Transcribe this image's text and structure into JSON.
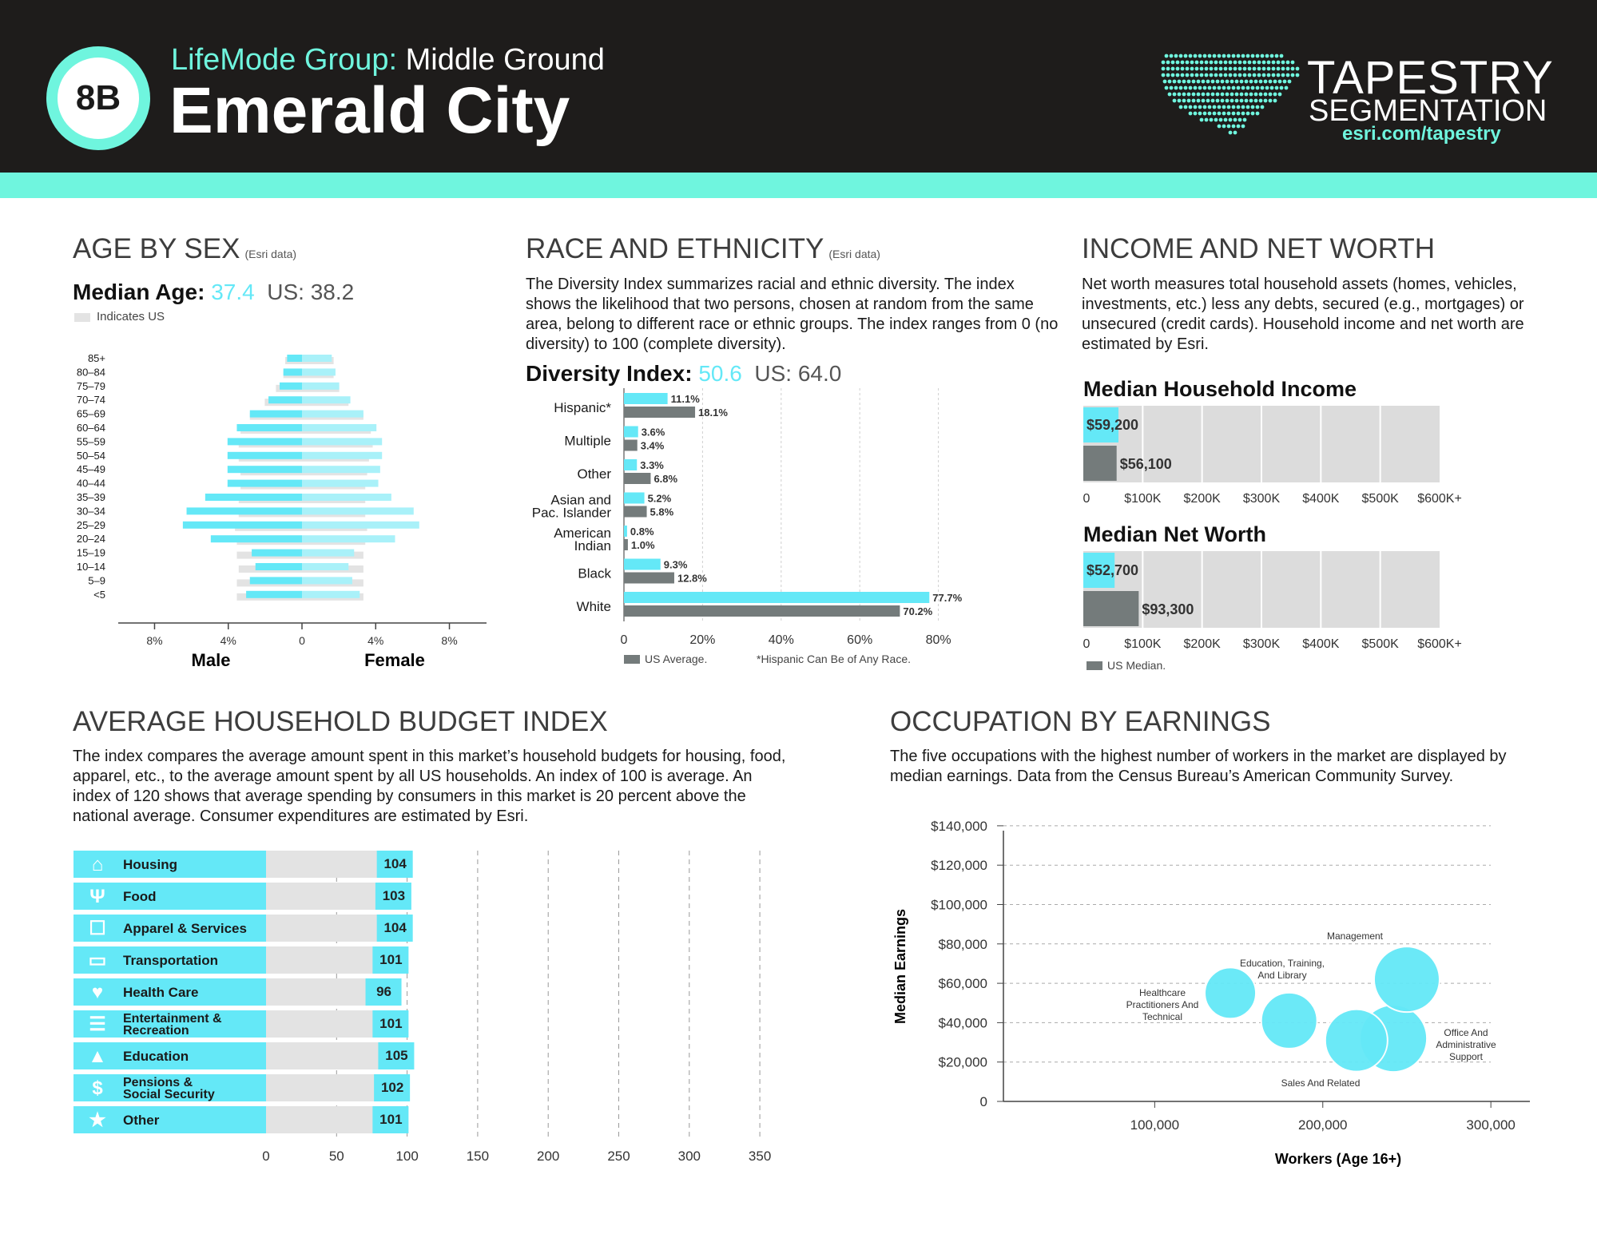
{
  "header": {
    "badge": "8B",
    "lifemode_prefix": "LifeMode Group:",
    "lifemode_name": "Middle Ground",
    "segment_name": "Emerald City",
    "brand_line1": "TAPESTRY",
    "brand_line2": "SEGMENTATION",
    "brand_url": "esri.com/tapestry"
  },
  "age_by_sex": {
    "title": "AGE BY SEX",
    "source": "(Esri data)",
    "median_label": "Median Age:",
    "median_value": "37.4",
    "us_value": "US: 38.2",
    "legend": "Indicates US",
    "male_label": "Male",
    "female_label": "Female"
  },
  "race": {
    "title": "RACE AND ETHNICITY",
    "source": "(Esri data)",
    "description": "The Diversity Index summarizes racial and ethnic diversity. The index shows the likelihood that two persons, chosen at random from the same area, belong to different race or ethnic groups. The index ranges from 0 (no diversity) to 100 (complete diversity).",
    "diversity_label": "Diversity Index:",
    "diversity_value": "50.6",
    "us_value": "US: 64.0",
    "legend": "US Average.",
    "note": "*Hispanic Can Be of Any Race."
  },
  "income": {
    "title": "INCOME AND NET WORTH",
    "description": "Net worth measures total household assets (homes, vehicles, investments, etc.) less any debts, secured (e.g., mortgages) or unsecured (credit cards). Household income and net worth are estimated by Esri.",
    "legend": "US Median."
  },
  "budget": {
    "title": "AVERAGE HOUSEHOLD BUDGET INDEX",
    "description": "The index compares the average amount spent in this market’s household budgets for housing, food, apparel, etc., to the average amount spent by all US households. An index of 100 is average. An index of 120 shows that average spending by consumers in this market is 20 percent above the national average. Consumer expenditures are estimated by Esri."
  },
  "occupation": {
    "title": "OCCUPATION BY EARNINGS",
    "description": "The five occupations with the highest number of workers in the market are displayed by median earnings. Data from the Census Bureau’s American Community Survey."
  },
  "chart_data": [
    {
      "type": "bar",
      "subtype": "population-pyramid",
      "categories": [
        "85+",
        "80–84",
        "75–79",
        "70–74",
        "65–69",
        "60–64",
        "55–59",
        "50–54",
        "45–49",
        "40–44",
        "35–39",
        "30–34",
        "25–29",
        "20–24",
        "15–19",
        "10–14",
        "5–9",
        "<5"
      ],
      "series": [
        {
          "name": "Male",
          "values": [
            0.8,
            1.0,
            1.2,
            1.8,
            2.8,
            3.5,
            4.0,
            4.0,
            4.0,
            4.0,
            5.2,
            6.2,
            6.4,
            4.9,
            2.7,
            2.5,
            2.8,
            3.0
          ]
        },
        {
          "name": "Female",
          "values": [
            1.6,
            1.8,
            2.0,
            2.6,
            3.3,
            4.0,
            4.3,
            4.3,
            4.2,
            4.1,
            4.8,
            6.0,
            6.3,
            5.0,
            2.8,
            2.5,
            2.7,
            3.1
          ]
        },
        {
          "name": "US Male",
          "values": [
            0.9,
            1.0,
            1.4,
            2.0,
            2.8,
            3.3,
            3.4,
            3.4,
            3.3,
            3.3,
            3.4,
            3.4,
            3.6,
            3.5,
            3.5,
            3.4,
            3.5,
            3.5
          ]
        },
        {
          "name": "US Female",
          "values": [
            1.7,
            1.7,
            2.0,
            2.5,
            3.3,
            3.7,
            3.8,
            3.6,
            3.5,
            3.4,
            3.4,
            3.4,
            3.5,
            3.4,
            3.3,
            3.3,
            3.3,
            3.3
          ]
        }
      ],
      "xticks": [
        "8%",
        "4%",
        "0",
        "4%",
        "8%"
      ],
      "xlim": [
        -8,
        8
      ]
    },
    {
      "type": "bar",
      "orientation": "horizontal",
      "categories": [
        [
          "Hispanic*"
        ],
        [
          "Multiple"
        ],
        [
          "Other"
        ],
        [
          "Asian and",
          "Pac. Islander"
        ],
        [
          "American",
          "Indian"
        ],
        [
          "Black"
        ],
        [
          "White"
        ]
      ],
      "series": [
        {
          "values": [
            11.1,
            3.6,
            3.3,
            5.2,
            0.8,
            9.3,
            77.7
          ],
          "labels": [
            "11.1%",
            "3.6%",
            "3.3%",
            "5.2%",
            "0.8%",
            "9.3%",
            "77.7%"
          ]
        },
        {
          "name": "US Average",
          "values": [
            18.1,
            3.4,
            6.8,
            5.8,
            1.0,
            12.8,
            70.2
          ],
          "labels": [
            "18.1%",
            "3.4%",
            "6.8%",
            "5.8%",
            "1.0%",
            "12.8%",
            "70.2%"
          ]
        }
      ],
      "xticks": [
        "0",
        "20%",
        "40%",
        "60%",
        "80%"
      ],
      "xlim": [
        0,
        90
      ]
    },
    {
      "type": "bar",
      "orientation": "horizontal",
      "title": "Median Household Income",
      "values": [
        59200,
        56100
      ],
      "labels": [
        "$59,200",
        "$56,100"
      ],
      "xticks": [
        "0",
        "$100K",
        "$200K",
        "$300K",
        "$400K",
        "$500K",
        "$600K+"
      ],
      "xlim": [
        0,
        600000
      ]
    },
    {
      "type": "bar",
      "orientation": "horizontal",
      "title": "Median Net Worth",
      "values": [
        52700,
        93300
      ],
      "labels": [
        "$52,700",
        "$93,300"
      ],
      "xticks": [
        "0",
        "$100K",
        "$200K",
        "$300K",
        "$400K",
        "$500K",
        "$600K+"
      ],
      "xlim": [
        0,
        600000
      ]
    },
    {
      "type": "bar",
      "orientation": "horizontal",
      "categories": [
        "Housing",
        "Food",
        "Apparel & Services",
        "Transportation",
        "Health Care",
        "Entertainment & Recreation",
        "Education",
        "Pensions & Social Security",
        "Other"
      ],
      "category_lines": [
        [
          "Housing"
        ],
        [
          "Food"
        ],
        [
          "Apparel & Services"
        ],
        [
          "Transportation"
        ],
        [
          "Health Care"
        ],
        [
          "Entertainment &",
          "Recreation"
        ],
        [
          "Education"
        ],
        [
          "Pensions &",
          "Social Security"
        ],
        [
          "Other"
        ]
      ],
      "icons": [
        "house-icon",
        "utensils-icon",
        "shirt-icon",
        "car-icon",
        "heart-icon",
        "ticket-icon",
        "graduation-cap-icon",
        "money-icon",
        "star-icon"
      ],
      "values": [
        104,
        103,
        104,
        101,
        96,
        101,
        105,
        102,
        101
      ],
      "labels": [
        "104",
        "103",
        "104",
        "101",
        "96",
        "101",
        "105",
        "102",
        "101"
      ],
      "xticks": [
        "0",
        "50",
        "100",
        "150",
        "200",
        "250",
        "300",
        "350"
      ],
      "xlim": [
        0,
        350
      ]
    },
    {
      "type": "scatter",
      "subtype": "bubble",
      "xlabel": "Workers (Age 16+)",
      "ylabel": "Median Earnings",
      "xticks": [
        "100,000",
        "200,000",
        "300,000"
      ],
      "yticks": [
        "0",
        "$20,000",
        "$40,000",
        "$60,000",
        "$80,000",
        "$100,000",
        "$120,000",
        "$140,000"
      ],
      "ylim": [
        0,
        140000
      ],
      "points": [
        {
          "label": [
            "Healthcare",
            "Practitioners And",
            "Technical"
          ],
          "x": 145000,
          "y": 55000
        },
        {
          "label": [
            "Education, Training,",
            "And Library"
          ],
          "x": 180000,
          "y": 41000
        },
        {
          "label": [
            "Office And",
            "Administrative",
            "Support"
          ],
          "x": 242000,
          "y": 32000
        },
        {
          "label": [
            "Sales And Related"
          ],
          "x": 220000,
          "y": 31000
        },
        {
          "label": [
            "Management"
          ],
          "x": 250000,
          "y": 62000
        }
      ]
    }
  ]
}
